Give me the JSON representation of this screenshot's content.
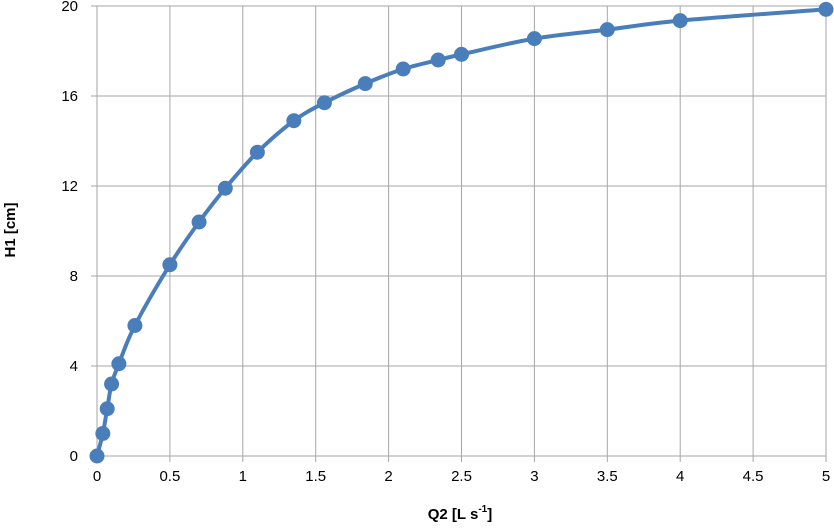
{
  "chart_data": {
    "type": "line",
    "title": "",
    "xlabel": "Q2 [L s",
    "xlabel_superscript": "-1",
    "xlabel_suffix": "]",
    "ylabel": "H1 [cm]",
    "xlim": [
      0,
      5
    ],
    "ylim": [
      0,
      20
    ],
    "xticks": [
      0,
      0.5,
      1,
      1.5,
      2,
      2.5,
      3,
      3.5,
      4,
      4.5,
      5
    ],
    "yticks": [
      0,
      4,
      8,
      12,
      16,
      20
    ],
    "grid": true,
    "legend": "none",
    "series_color": "#4a7ebb",
    "grid_color": "#a6a6a6",
    "series": [
      {
        "x": [
          0,
          0.04,
          0.07,
          0.1,
          0.15,
          0.26,
          0.5,
          0.7,
          0.88,
          1.1,
          1.35,
          1.56,
          1.84,
          2.1,
          2.34,
          2.5,
          3.0,
          3.5,
          4.0,
          5.0
        ],
        "y": [
          0,
          1.0,
          2.1,
          3.2,
          4.1,
          5.8,
          8.5,
          10.4,
          11.9,
          13.5,
          14.9,
          15.7,
          16.55,
          17.2,
          17.6,
          17.85,
          18.55,
          18.95,
          19.35,
          19.85
        ]
      }
    ]
  }
}
